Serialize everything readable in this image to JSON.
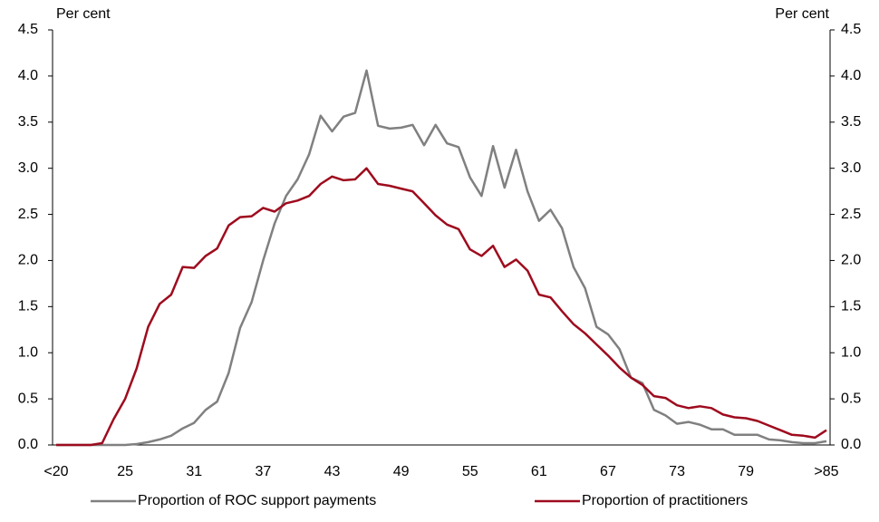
{
  "chart_data": {
    "type": "line",
    "ylabel": "Per cent",
    "y2label": "Per cent",
    "categories": [
      "<20",
      null,
      null,
      null,
      null,
      null,
      "25",
      null,
      null,
      null,
      null,
      null,
      "31",
      null,
      null,
      null,
      null,
      null,
      "37",
      null,
      null,
      null,
      null,
      null,
      "43",
      null,
      null,
      null,
      null,
      null,
      "49",
      null,
      null,
      null,
      null,
      null,
      "55",
      null,
      null,
      null,
      null,
      null,
      "61",
      null,
      null,
      null,
      null,
      null,
      "67",
      null,
      null,
      null,
      null,
      null,
      "73",
      null,
      null,
      null,
      null,
      null,
      "79",
      null,
      null,
      null,
      null,
      null,
      null,
      ">85"
    ],
    "series": [
      {
        "name": "Proportion of ROC support payments",
        "color": "#808080",
        "values": [
          0,
          0,
          0,
          0,
          0,
          0,
          0,
          0.01,
          0.03,
          0.06,
          0.1,
          0.18,
          0.24,
          0.38,
          0.47,
          0.78,
          1.27,
          1.55,
          2.0,
          2.4,
          2.7,
          2.88,
          3.15,
          3.57,
          3.4,
          3.56,
          3.6,
          4.06,
          3.46,
          3.43,
          3.44,
          3.47,
          3.25,
          3.47,
          3.27,
          3.23,
          2.9,
          2.7,
          3.24,
          2.79,
          3.2,
          2.75,
          2.43,
          2.55,
          2.35,
          1.93,
          1.7,
          1.28,
          1.2,
          1.04,
          0.73,
          0.67,
          0.38,
          0.32,
          0.23,
          0.25,
          0.22,
          0.17,
          0.17,
          0.11,
          0.11,
          0.11,
          0.06,
          0.05,
          0.03,
          0.02,
          0.02,
          0.04
        ]
      },
      {
        "name": "Proportion of practitioners",
        "color": "#9e0b1e",
        "values": [
          0,
          0,
          0,
          0,
          0.02,
          0.28,
          0.5,
          0.83,
          1.28,
          1.53,
          1.63,
          1.93,
          1.92,
          2.05,
          2.13,
          2.38,
          2.47,
          2.48,
          2.57,
          2.53,
          2.62,
          2.65,
          2.7,
          2.83,
          2.91,
          2.87,
          2.88,
          3.0,
          2.83,
          2.81,
          2.78,
          2.75,
          2.62,
          2.49,
          2.39,
          2.34,
          2.12,
          2.05,
          2.16,
          1.93,
          2.01,
          1.89,
          1.63,
          1.6,
          1.45,
          1.31,
          1.21,
          1.09,
          0.97,
          0.84,
          0.73,
          0.65,
          0.53,
          0.51,
          0.43,
          0.4,
          0.42,
          0.4,
          0.33,
          0.3,
          0.29,
          0.26,
          0.21,
          0.16,
          0.11,
          0.1,
          0.08,
          0.16
        ]
      }
    ],
    "ylim": [
      0,
      4.5
    ],
    "yticks": [
      {
        "value": 0,
        "label": "0.0"
      },
      {
        "value": 0.5,
        "label": "0.5"
      },
      {
        "value": 1,
        "label": "1.0"
      },
      {
        "value": 1.5,
        "label": "1.5"
      },
      {
        "value": 2,
        "label": "2.0"
      },
      {
        "value": 2.5,
        "label": "2.5"
      },
      {
        "value": 3,
        "label": "3.0"
      },
      {
        "value": 3.5,
        "label": "3.5"
      },
      {
        "value": 4,
        "label": "4.0"
      },
      {
        "value": 4.5,
        "label": "4.5"
      }
    ],
    "y2lim": [
      0,
      4.5
    ],
    "y2ticks": [
      {
        "value": 0,
        "label": "0.0"
      },
      {
        "value": 0.5,
        "label": "0.5"
      },
      {
        "value": 1,
        "label": "1.0"
      },
      {
        "value": 1.5,
        "label": "1.5"
      },
      {
        "value": 2,
        "label": "2.0"
      },
      {
        "value": 2.5,
        "label": "2.5"
      },
      {
        "value": 3,
        "label": "3.0"
      },
      {
        "value": 3.5,
        "label": "3.5"
      },
      {
        "value": 4,
        "label": "4.0"
      },
      {
        "value": 4.5,
        "label": "4.5"
      }
    ],
    "grid": false,
    "legend": "bottom"
  }
}
